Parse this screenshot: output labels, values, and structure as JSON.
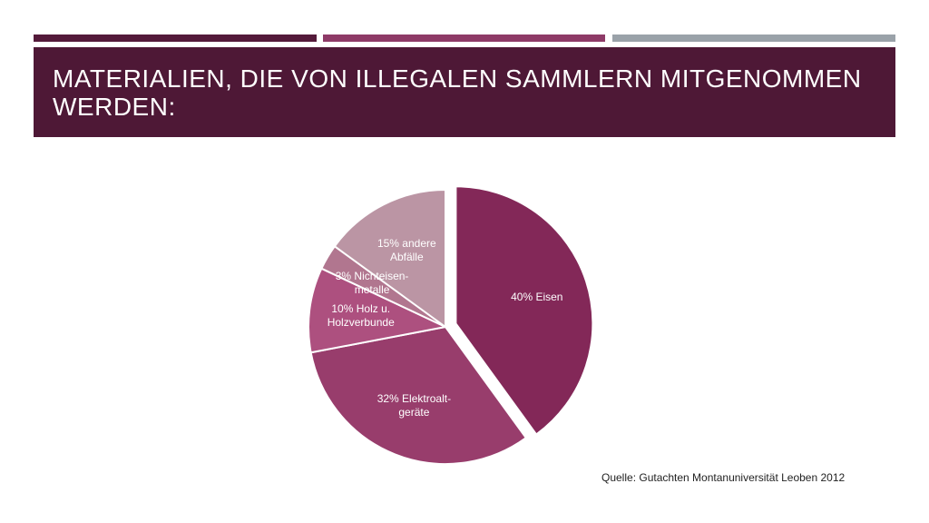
{
  "title": "MATERIALIEN, DIE VON ILLEGALEN SAMMLERN MITGENOMMEN WERDEN:",
  "source": "Quelle: Gutachten Montanuniversität Leoben 2012",
  "colors": {
    "bar_1": "#541a3a",
    "bar_2": "#8e3a67",
    "bar_3": "#9aa2a9",
    "title_band": "#4e1836"
  },
  "chart_data": {
    "type": "pie",
    "slices": [
      {
        "label": "40% Eisen",
        "value": 40,
        "color": "#832858",
        "exploded": true
      },
      {
        "label": "32% Elektroalt- geräte",
        "value": 32,
        "color": "#983d6c",
        "exploded": false
      },
      {
        "label": "10% Holz u. Holzverbunde",
        "value": 10,
        "color": "#ad507f",
        "exploded": false
      },
      {
        "label": "3% Nichteisen- metalle",
        "value": 3,
        "color": "#b1768f",
        "exploded": false
      },
      {
        "label": "15% andere Abfälle",
        "value": 15,
        "color": "#bb95a4",
        "exploded": false
      }
    ]
  }
}
